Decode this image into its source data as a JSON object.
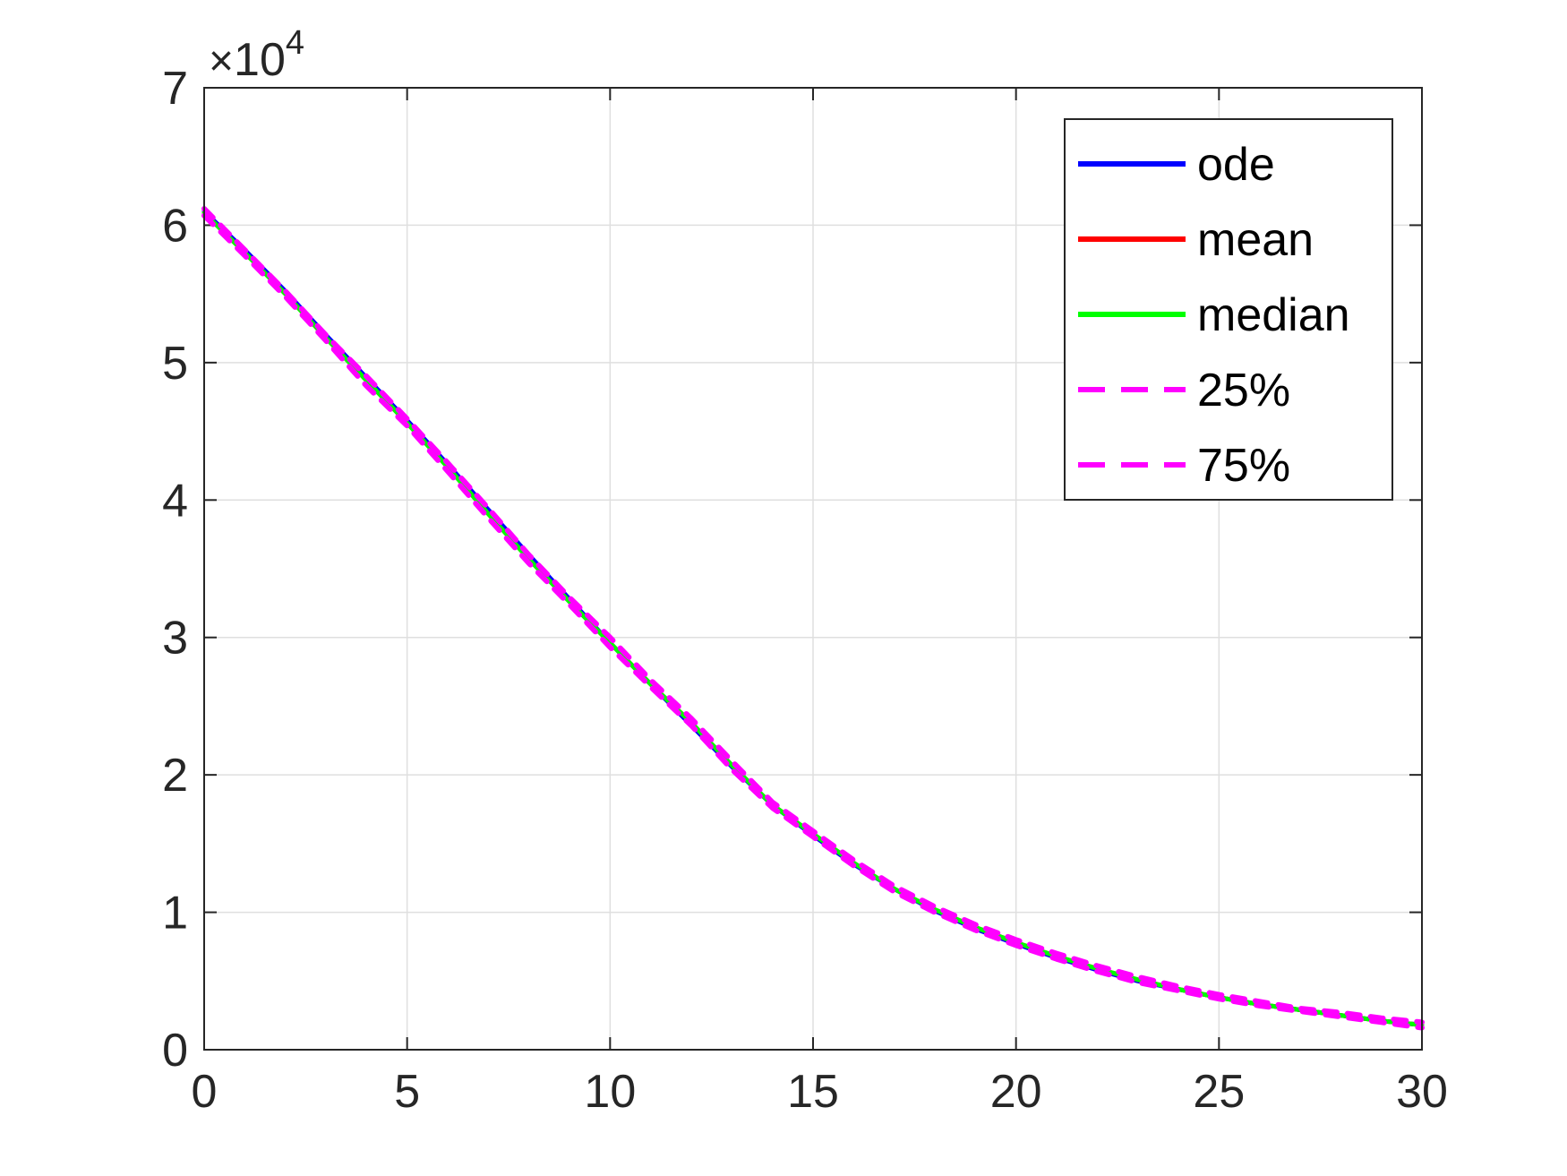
{
  "chart_data": {
    "type": "line",
    "title": "",
    "xlabel": "",
    "ylabel": "",
    "xlim": [
      0,
      30
    ],
    "ylim": [
      0,
      70000
    ],
    "grid": true,
    "box": true,
    "legend_position": "top-right",
    "y_exponent": {
      "times": "×",
      "base": "10",
      "power": "4"
    },
    "x_ticks": [
      {
        "value": 0,
        "label": "0"
      },
      {
        "value": 5,
        "label": "5"
      },
      {
        "value": 10,
        "label": "10"
      },
      {
        "value": 15,
        "label": "15"
      },
      {
        "value": 20,
        "label": "20"
      },
      {
        "value": 25,
        "label": "25"
      },
      {
        "value": 30,
        "label": "30"
      }
    ],
    "y_ticks": [
      {
        "value": 0,
        "label": "0"
      },
      {
        "value": 10000,
        "label": "1"
      },
      {
        "value": 20000,
        "label": "2"
      },
      {
        "value": 30000,
        "label": "3"
      },
      {
        "value": 40000,
        "label": "4"
      },
      {
        "value": 50000,
        "label": "5"
      },
      {
        "value": 60000,
        "label": "6"
      },
      {
        "value": 70000,
        "label": "7"
      }
    ],
    "x": [
      0,
      1,
      2,
      3,
      4,
      5,
      6,
      7,
      8,
      9,
      10,
      11,
      12,
      13,
      14,
      15,
      16,
      17,
      18,
      19,
      20,
      21,
      22,
      23,
      24,
      25,
      26,
      27,
      28,
      29,
      30
    ],
    "series": [
      {
        "name": "ode",
        "color": "#0000ff",
        "style": "solid",
        "values": [
          61000,
          58200,
          55200,
          52000,
          48900,
          45800,
          42600,
          39300,
          36000,
          32800,
          29600,
          26600,
          23600,
          20600,
          17800,
          15600,
          13500,
          11700,
          10100,
          8800,
          7700,
          6700,
          5800,
          5000,
          4400,
          3800,
          3300,
          2900,
          2500,
          2100,
          1800
        ]
      },
      {
        "name": "mean",
        "color": "#ff0000",
        "style": "solid",
        "values": [
          60900,
          58000,
          55000,
          51800,
          48700,
          45600,
          42400,
          39000,
          35700,
          32600,
          29600,
          26600,
          23800,
          20700,
          17800,
          15700,
          13600,
          11700,
          10200,
          8900,
          7800,
          6800,
          5900,
          5100,
          4400,
          3800,
          3300,
          2900,
          2500,
          2100,
          1800
        ]
      },
      {
        "name": "median",
        "color": "#00ff00",
        "style": "solid",
        "values": [
          60900,
          58000,
          55000,
          51800,
          48700,
          45600,
          42400,
          39000,
          35700,
          32600,
          29600,
          26600,
          23800,
          20700,
          17800,
          15700,
          13600,
          11700,
          10200,
          8900,
          7800,
          6800,
          5900,
          5100,
          4400,
          3800,
          3300,
          2900,
          2500,
          2100,
          1800
        ]
      },
      {
        "name": "25%",
        "color": "#ff00ff",
        "style": "dashed",
        "values": [
          60700,
          57800,
          54800,
          51600,
          48300,
          45400,
          42100,
          38700,
          35400,
          32400,
          29300,
          26400,
          23600,
          20400,
          17600,
          15500,
          13400,
          11500,
          10000,
          8700,
          7600,
          6600,
          5700,
          4900,
          4300,
          3700,
          3200,
          2800,
          2400,
          2000,
          1600
        ]
      },
      {
        "name": "75%",
        "color": "#ff00ff",
        "style": "dashed",
        "values": [
          61200,
          58200,
          55200,
          52000,
          49000,
          45900,
          42700,
          39400,
          36000,
          32900,
          30000,
          26900,
          24100,
          21000,
          18000,
          15900,
          13800,
          11900,
          10400,
          9100,
          8000,
          7000,
          6100,
          5300,
          4600,
          4000,
          3500,
          3000,
          2700,
          2300,
          2000
        ]
      }
    ]
  }
}
